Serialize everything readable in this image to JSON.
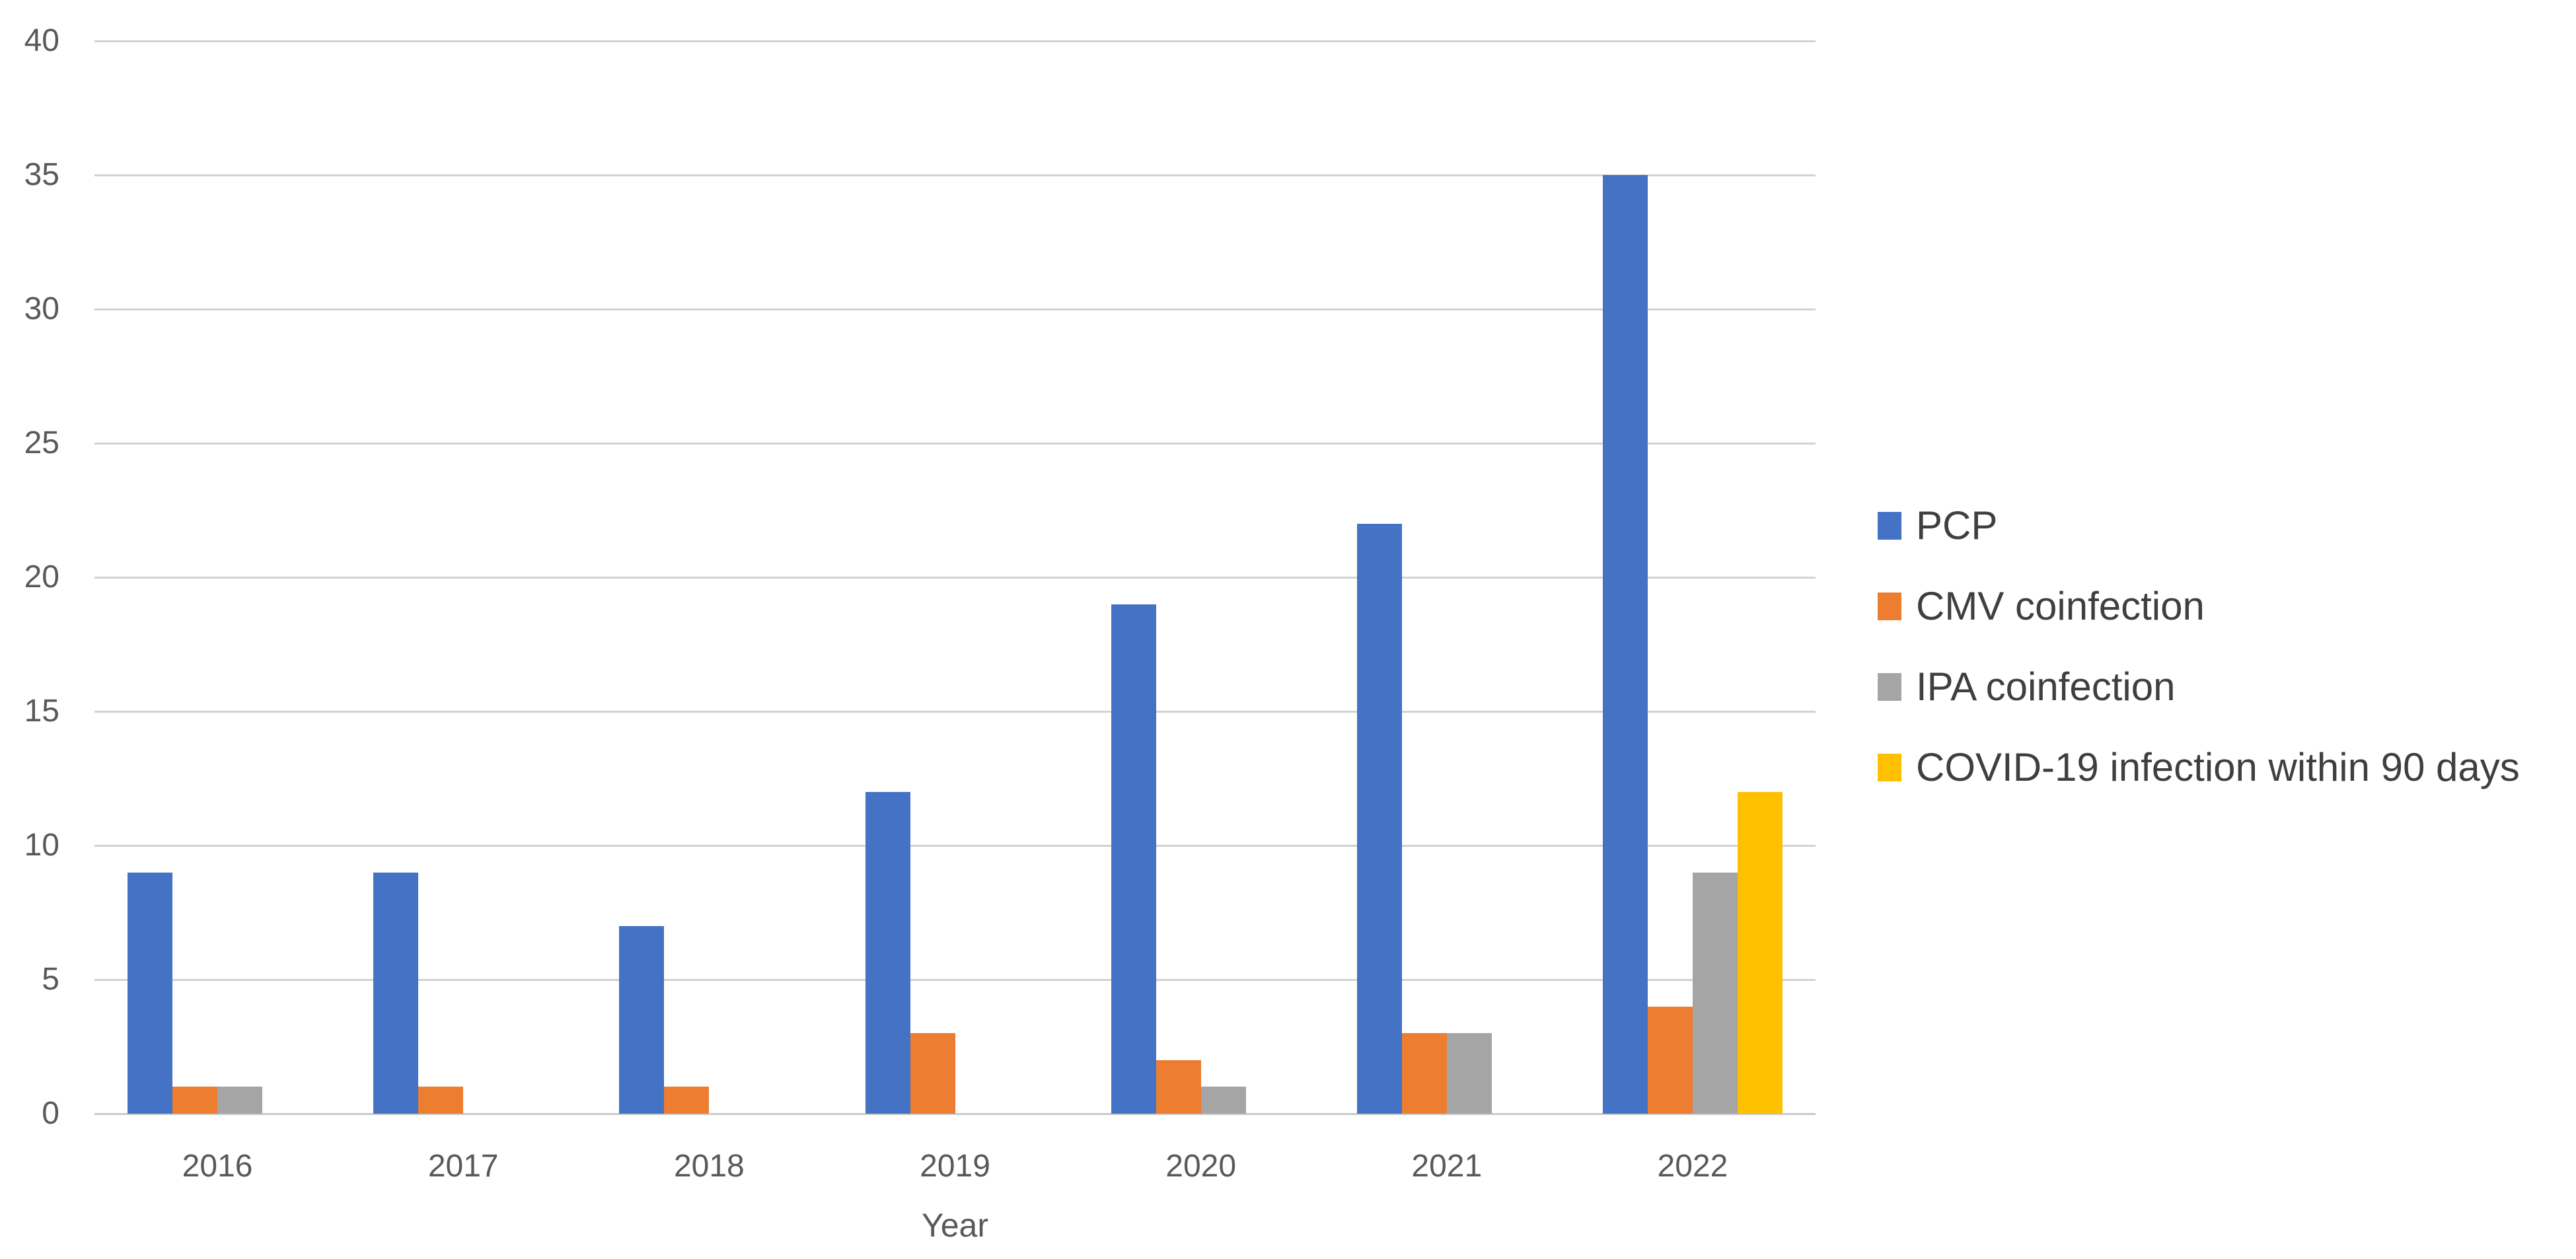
{
  "chart_data": {
    "type": "bar",
    "title": "",
    "categories": [
      "2016",
      "2017",
      "2018",
      "2019",
      "2020",
      "2021",
      "2022"
    ],
    "series": [
      {
        "name": "PCP",
        "color": "#4472C4",
        "values": [
          9,
          9,
          7,
          12,
          19,
          22,
          35
        ]
      },
      {
        "name": "CMV coinfection",
        "color": "#ED7D31",
        "values": [
          1,
          1,
          1,
          3,
          2,
          3,
          4
        ]
      },
      {
        "name": "IPA coinfection",
        "color": "#A5A5A5",
        "values": [
          1,
          0,
          0,
          0,
          1,
          3,
          9
        ]
      },
      {
        "name": "COVID-19 infection within 90 days",
        "color": "#FFC000",
        "values": [
          0,
          0,
          0,
          0,
          0,
          0,
          12
        ]
      }
    ],
    "xlabel": "Year",
    "ylim": [
      0,
      40
    ],
    "ytick_step": 5,
    "grid": true,
    "legend_position": "right",
    "colors": {
      "gridline": "#D2D2D2",
      "axis_line": "#C9C9C9",
      "tick_label": "#595959",
      "axis_title": "#595959",
      "legend_text": "#3F3F3F"
    }
  }
}
